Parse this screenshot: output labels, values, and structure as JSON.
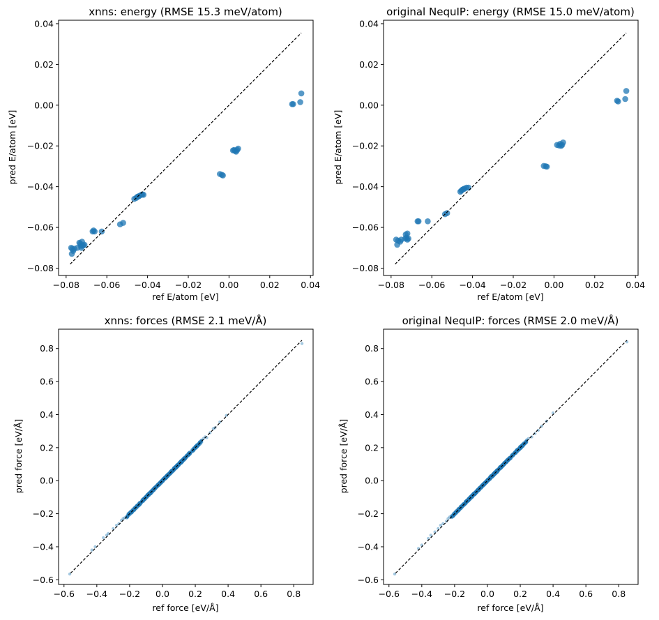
{
  "figure": {
    "background": "#ffffff"
  },
  "style": {
    "point_color": "#1f77b4",
    "identity_line_color": "#000000"
  },
  "chart_data": [
    {
      "id": "xnns-energy",
      "type": "scatter",
      "title": "xnns: energy (RMSE 15.3 meV/atom)",
      "xlabel": "ref E/atom [eV]",
      "ylabel": "pred E/atom [eV]",
      "xlim": [
        -0.0837,
        0.0413
      ],
      "ylim": [
        -0.0836,
        0.0417
      ],
      "xticks": [
        -0.08,
        -0.06,
        -0.04,
        -0.02,
        0.0,
        0.02,
        0.04
      ],
      "xtick_labels": [
        "−0.08",
        "−0.06",
        "−0.04",
        "−0.02",
        "0.00",
        "0.02",
        "0.04"
      ],
      "yticks": [
        -0.08,
        -0.06,
        -0.04,
        -0.02,
        0.0,
        0.02,
        0.04
      ],
      "ytick_labels": [
        "−0.08",
        "−0.06",
        "−0.04",
        "−0.02",
        "0.00",
        "0.02",
        "0.04"
      ],
      "identity_line": [
        -0.078,
        0.0355
      ],
      "marker_style": "large",
      "points": [
        [
          -0.0775,
          -0.07
        ],
        [
          -0.077,
          -0.0705
        ],
        [
          -0.0772,
          -0.073
        ],
        [
          -0.0765,
          -0.0715
        ],
        [
          -0.076,
          -0.0705
        ],
        [
          -0.0745,
          -0.07
        ],
        [
          -0.0735,
          -0.0675
        ],
        [
          -0.073,
          -0.068
        ],
        [
          -0.0728,
          -0.069
        ],
        [
          -0.0722,
          -0.067
        ],
        [
          -0.072,
          -0.069
        ],
        [
          -0.0715,
          -0.0688
        ],
        [
          -0.071,
          -0.0685
        ],
        [
          -0.0725,
          -0.07
        ],
        [
          -0.067,
          -0.062
        ],
        [
          -0.0665,
          -0.0615
        ],
        [
          -0.066,
          -0.062
        ],
        [
          -0.0625,
          -0.062
        ],
        [
          -0.0535,
          -0.0585
        ],
        [
          -0.052,
          -0.0578
        ],
        [
          -0.0465,
          -0.046
        ],
        [
          -0.0455,
          -0.0455
        ],
        [
          -0.045,
          -0.045
        ],
        [
          -0.0445,
          -0.0448
        ],
        [
          -0.044,
          -0.0445
        ],
        [
          -0.043,
          -0.044
        ],
        [
          -0.0425,
          -0.0438
        ],
        [
          -0.042,
          -0.044
        ],
        [
          -0.0045,
          -0.0338
        ],
        [
          -0.0035,
          -0.0342
        ],
        [
          -0.003,
          -0.0345
        ],
        [
          0.002,
          -0.0222
        ],
        [
          0.003,
          -0.0225
        ],
        [
          0.004,
          -0.022
        ],
        [
          0.0045,
          -0.0213
        ],
        [
          0.0035,
          -0.0228
        ],
        [
          0.0025,
          -0.022
        ],
        [
          0.031,
          0.0005
        ],
        [
          0.0315,
          0.0005
        ],
        [
          0.035,
          0.0015
        ],
        [
          0.0355,
          0.0058
        ]
      ]
    },
    {
      "id": "nequip-energy",
      "type": "scatter",
      "title": "original NequIP: energy (RMSE 15.0 meV/atom)",
      "xlabel": "ref E/atom [eV]",
      "ylabel": "pred E/atom [eV]",
      "xlim": [
        -0.0837,
        0.0413
      ],
      "ylim": [
        -0.0836,
        0.0417
      ],
      "xticks": [
        -0.08,
        -0.06,
        -0.04,
        -0.02,
        0.0,
        0.02,
        0.04
      ],
      "xtick_labels": [
        "−0.08",
        "−0.06",
        "−0.04",
        "−0.02",
        "0.00",
        "0.02",
        "0.04"
      ],
      "yticks": [
        -0.08,
        -0.06,
        -0.04,
        -0.02,
        0.0,
        0.02,
        0.04
      ],
      "ytick_labels": [
        "−0.08",
        "−0.06",
        "−0.04",
        "−0.02",
        "0.00",
        "0.02",
        "0.04"
      ],
      "identity_line": [
        -0.078,
        0.0355
      ],
      "marker_style": "large",
      "points": [
        [
          -0.0775,
          -0.066
        ],
        [
          -0.077,
          -0.0685
        ],
        [
          -0.0765,
          -0.0665
        ],
        [
          -0.0755,
          -0.067
        ],
        [
          -0.075,
          -0.066
        ],
        [
          -0.073,
          -0.0655
        ],
        [
          -0.0725,
          -0.065
        ],
        [
          -0.072,
          -0.066
        ],
        [
          -0.0715,
          -0.0655
        ],
        [
          -0.0728,
          -0.0635
        ],
        [
          -0.072,
          -0.063
        ],
        [
          -0.067,
          -0.057
        ],
        [
          -0.0665,
          -0.057
        ],
        [
          -0.062,
          -0.057
        ],
        [
          -0.0535,
          -0.0535
        ],
        [
          -0.0525,
          -0.053
        ],
        [
          -0.046,
          -0.0425
        ],
        [
          -0.0455,
          -0.042
        ],
        [
          -0.045,
          -0.0415
        ],
        [
          -0.0445,
          -0.0412
        ],
        [
          -0.044,
          -0.041
        ],
        [
          -0.043,
          -0.0405
        ],
        [
          -0.042,
          -0.0405
        ],
        [
          -0.005,
          -0.0298
        ],
        [
          -0.004,
          -0.03
        ],
        [
          -0.0035,
          -0.0302
        ],
        [
          0.0015,
          -0.0195
        ],
        [
          0.0025,
          -0.0198
        ],
        [
          0.003,
          -0.019
        ],
        [
          0.004,
          -0.0195
        ],
        [
          0.0045,
          -0.0183
        ],
        [
          0.0035,
          -0.02
        ],
        [
          0.031,
          0.0022
        ],
        [
          0.0315,
          0.0018
        ],
        [
          0.035,
          0.003
        ],
        [
          0.0355,
          0.007
        ]
      ]
    },
    {
      "id": "xnns-forces",
      "type": "scatter",
      "title": "xnns: forces (RMSE 2.1 meV/Å)",
      "xlabel": "ref force [eV/Å]",
      "ylabel": "pred force [eV/Å]",
      "xlim": [
        -0.633,
        0.918
      ],
      "ylim": [
        -0.628,
        0.917
      ],
      "xticks": [
        -0.6,
        -0.4,
        -0.2,
        0.0,
        0.2,
        0.4,
        0.6,
        0.8
      ],
      "xtick_labels": [
        "−0.6",
        "−0.4",
        "−0.2",
        "0.0",
        "0.2",
        "0.4",
        "0.6",
        "0.8"
      ],
      "yticks": [
        -0.6,
        -0.4,
        -0.2,
        0.0,
        0.2,
        0.4,
        0.6,
        0.8
      ],
      "ytick_labels": [
        "−0.6",
        "−0.4",
        "−0.2",
        "0.0",
        "0.2",
        "0.4",
        "0.6",
        "0.8"
      ],
      "identity_line": [
        -0.56,
        0.85
      ],
      "marker_style": "small",
      "band": {
        "from": -0.22,
        "to": 0.24
      },
      "points": [
        [
          -0.565,
          -0.565
        ],
        [
          -0.43,
          -0.42
        ],
        [
          -0.41,
          -0.4
        ],
        [
          -0.36,
          -0.345
        ],
        [
          -0.34,
          -0.33
        ],
        [
          -0.33,
          -0.32
        ],
        [
          -0.3,
          -0.29
        ],
        [
          -0.28,
          -0.27
        ],
        [
          -0.265,
          -0.26
        ],
        [
          -0.25,
          -0.24
        ],
        [
          -0.24,
          -0.23
        ],
        [
          -0.23,
          -0.225
        ],
        [
          -0.21,
          -0.2
        ],
        [
          0.22,
          0.225
        ],
        [
          0.24,
          0.245
        ],
        [
          0.25,
          0.255
        ],
        [
          0.26,
          0.265
        ],
        [
          0.27,
          0.26
        ],
        [
          0.29,
          0.29
        ],
        [
          0.31,
          0.315
        ],
        [
          0.32,
          0.32
        ],
        [
          0.35,
          0.355
        ],
        [
          0.39,
          0.395
        ],
        [
          0.85,
          0.83
        ]
      ]
    },
    {
      "id": "nequip-forces",
      "type": "scatter",
      "title": "original NequIP: forces (RMSE 2.0 meV/Å)",
      "xlabel": "ref force [eV/Å]",
      "ylabel": "pred force [eV/Å]",
      "xlim": [
        -0.633,
        0.918
      ],
      "ylim": [
        -0.628,
        0.917
      ],
      "xticks": [
        -0.6,
        -0.4,
        -0.2,
        0.0,
        0.2,
        0.4,
        0.6,
        0.8
      ],
      "xtick_labels": [
        "−0.6",
        "−0.4",
        "−0.2",
        "0.0",
        "0.2",
        "0.4",
        "0.6",
        "0.8"
      ],
      "yticks": [
        -0.6,
        -0.4,
        -0.2,
        0.0,
        0.2,
        0.4,
        0.6,
        0.8
      ],
      "ytick_labels": [
        "−0.6",
        "−0.4",
        "−0.2",
        "0.0",
        "0.2",
        "0.4",
        "0.6",
        "0.8"
      ],
      "identity_line": [
        -0.56,
        0.85
      ],
      "marker_style": "small",
      "band": {
        "from": -0.22,
        "to": 0.24
      },
      "points": [
        [
          -0.565,
          -0.565
        ],
        [
          -0.42,
          -0.41
        ],
        [
          -0.4,
          -0.39
        ],
        [
          -0.36,
          -0.35
        ],
        [
          -0.345,
          -0.33
        ],
        [
          -0.32,
          -0.31
        ],
        [
          -0.3,
          -0.29
        ],
        [
          -0.285,
          -0.27
        ],
        [
          -0.27,
          -0.26
        ],
        [
          -0.25,
          -0.245
        ],
        [
          -0.24,
          -0.23
        ],
        [
          -0.23,
          -0.22
        ],
        [
          0.22,
          0.22
        ],
        [
          0.235,
          0.23
        ],
        [
          0.25,
          0.255
        ],
        [
          0.27,
          0.265
        ],
        [
          0.29,
          0.285
        ],
        [
          0.31,
          0.305
        ],
        [
          0.33,
          0.33
        ],
        [
          0.36,
          0.36
        ],
        [
          0.4,
          0.41
        ],
        [
          0.85,
          0.84
        ]
      ]
    }
  ]
}
